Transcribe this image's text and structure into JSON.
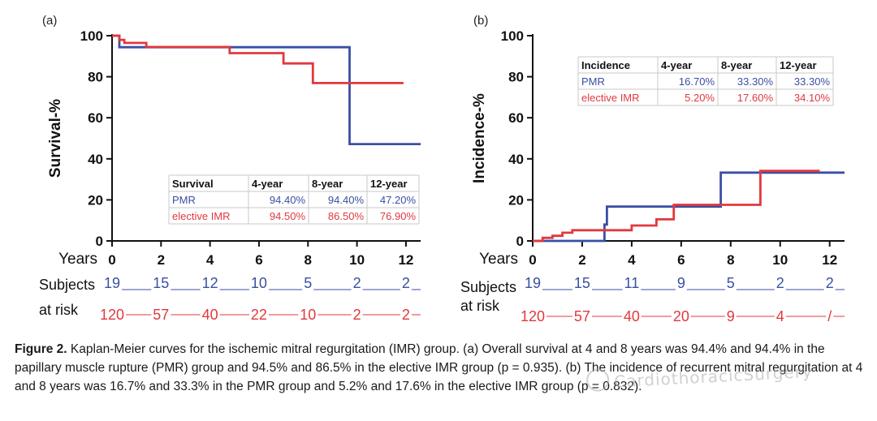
{
  "chart_data": [
    {
      "panel": "(a)",
      "type": "line",
      "ylabel": "Survival-%",
      "xlabel": "Years",
      "xlim": [
        0,
        12.6
      ],
      "ylim": [
        0,
        100
      ],
      "x_ticks": [
        0,
        2,
        4,
        6,
        8,
        10,
        12
      ],
      "y_ticks": [
        0,
        20,
        40,
        60,
        80,
        100
      ],
      "series": [
        {
          "name": "PMR",
          "color": "#3a4fa3",
          "steps": [
            [
              0,
              100
            ],
            [
              0.3,
              100
            ],
            [
              0.3,
              94.4
            ],
            [
              9.7,
              94.4
            ],
            [
              9.7,
              47.2
            ],
            [
              12.6,
              47.2
            ]
          ]
        },
        {
          "name": "elective IMR",
          "color": "#e0393e",
          "steps": [
            [
              0,
              100
            ],
            [
              0.3,
              100
            ],
            [
              0.3,
              98
            ],
            [
              0.5,
              98
            ],
            [
              0.5,
              96.5
            ],
            [
              1.4,
              96.5
            ],
            [
              1.4,
              94.5
            ],
            [
              4.8,
              94.5
            ],
            [
              4.8,
              91.5
            ],
            [
              7,
              91.5
            ],
            [
              7,
              86.5
            ],
            [
              8.2,
              86.5
            ],
            [
              8.2,
              76.9
            ],
            [
              11.9,
              76.9
            ]
          ]
        }
      ],
      "table": {
        "headers": [
          "Survival",
          "4-year",
          "8-year",
          "12-year"
        ],
        "rows": [
          {
            "label": "PMR",
            "values": [
              "94.40%",
              "94.40%",
              "47.20%"
            ],
            "color": "#3a4fa3"
          },
          {
            "label": "elective IMR",
            "values": [
              "94.50%",
              "86.50%",
              "76.90%"
            ],
            "color": "#e0393e"
          }
        ]
      },
      "risk": {
        "label_line1": "Subjects",
        "label_line2": "at risk",
        "PMR": [
          "19",
          "15",
          "12",
          "10",
          "5",
          "2",
          "2"
        ],
        "elective_IMR": [
          "120",
          "57",
          "40",
          "22",
          "10",
          "2",
          "2"
        ]
      }
    },
    {
      "panel": "(b)",
      "type": "line",
      "ylabel": "Incidence-%",
      "xlabel": "Years",
      "xlim": [
        0,
        12.6
      ],
      "ylim": [
        0,
        100
      ],
      "x_ticks": [
        0,
        2,
        4,
        6,
        8,
        10,
        12
      ],
      "y_ticks": [
        0,
        20,
        40,
        60,
        80,
        100
      ],
      "series": [
        {
          "name": "PMR",
          "color": "#3a4fa3",
          "steps": [
            [
              0,
              0
            ],
            [
              2.9,
              0
            ],
            [
              2.9,
              8
            ],
            [
              3,
              8
            ],
            [
              3,
              16.7
            ],
            [
              7.6,
              16.7
            ],
            [
              7.6,
              33.3
            ],
            [
              12.6,
              33.3
            ]
          ]
        },
        {
          "name": "elective IMR",
          "color": "#e0393e",
          "steps": [
            [
              0,
              0
            ],
            [
              0.4,
              0
            ],
            [
              0.4,
              1.5
            ],
            [
              0.8,
              1.5
            ],
            [
              0.8,
              2.5
            ],
            [
              1.2,
              2.5
            ],
            [
              1.2,
              4
            ],
            [
              1.6,
              4
            ],
            [
              1.6,
              5.2
            ],
            [
              4,
              5.2
            ],
            [
              4,
              7.5
            ],
            [
              5,
              7.5
            ],
            [
              5,
              10.5
            ],
            [
              5.7,
              10.5
            ],
            [
              5.7,
              17.6
            ],
            [
              9.2,
              17.6
            ],
            [
              9.2,
              34.1
            ],
            [
              11.6,
              34.1
            ]
          ]
        }
      ],
      "table": {
        "headers": [
          "Incidence",
          "4-year",
          "8-year",
          "12-year"
        ],
        "rows": [
          {
            "label": "PMR",
            "values": [
              "16.70%",
              "33.30%",
              "33.30%"
            ],
            "color": "#3a4fa3"
          },
          {
            "label": "elective IMR",
            "values": [
              "5.20%",
              "17.60%",
              "34.10%"
            ],
            "color": "#e0393e"
          }
        ]
      },
      "risk": {
        "label_line1": "Subjects",
        "label_line2": "at risk",
        "PMR": [
          "19",
          "15",
          "11",
          "9",
          "5",
          "2",
          "2"
        ],
        "elective_IMR": [
          "120",
          "57",
          "40",
          "20",
          "9",
          "4",
          "/"
        ]
      }
    }
  ],
  "caption": {
    "label": "Figure 2.",
    "text": "Kaplan-Meier curves for the ischemic mitral regurgitation (IMR) group. (a) Overall survival at 4 and 8 years was 94.4% and 94.4% in the papillary muscle rupture (PMR) group and 94.5% and 86.5% in the elective IMR group (p = 0.935). (b) The incidence of recurrent mitral regurgitation at 4 and 8 years was 16.7% and 33.3% in the PMR group and 5.2% and 17.6% in the elective IMR group (p = 0.832)."
  },
  "watermark": {
    "text": "CardiothoracicSurgery"
  }
}
